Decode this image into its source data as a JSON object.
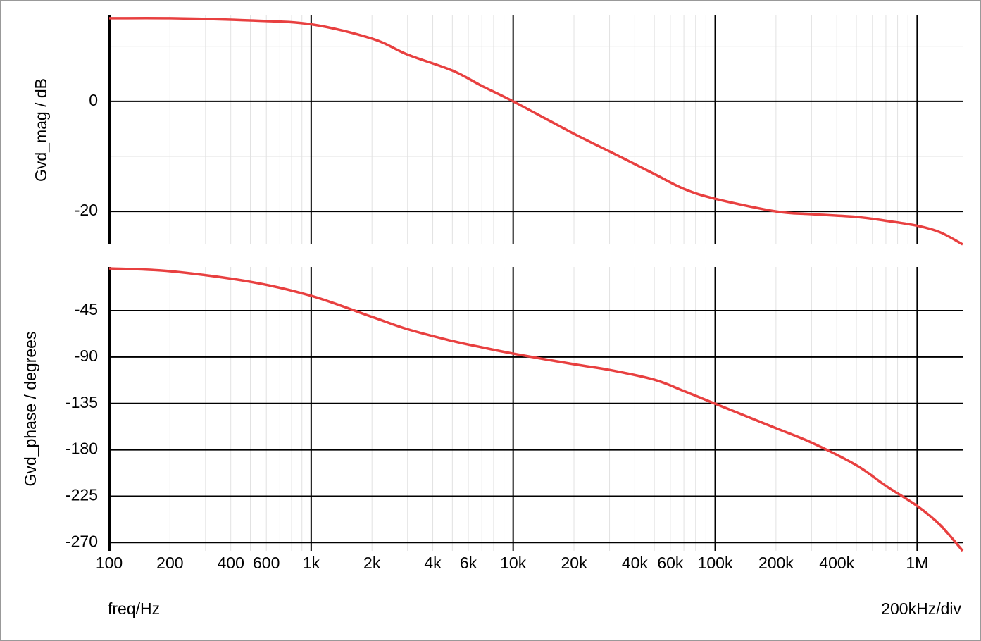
{
  "chart_data": [
    {
      "type": "line",
      "ylabel": "Gvd_mag / dB",
      "xscale": "log",
      "xlim": [
        100,
        1680000
      ],
      "ylim": [
        -26,
        15.6
      ],
      "yticks": [
        -20,
        0
      ],
      "y_minor_ticks": [
        -10,
        10
      ],
      "grid": true,
      "x": [
        100,
        200,
        500,
        1000,
        2000,
        3000,
        5000,
        7000,
        10000,
        20000,
        30000,
        50000,
        70000,
        100000,
        200000,
        300000,
        500000,
        700000,
        1000000,
        1300000,
        1680000
      ],
      "series": [
        {
          "color": "#e84040",
          "values": [
            15.1,
            15.1,
            14.7,
            14.0,
            11.4,
            8.5,
            5.6,
            2.8,
            0,
            -5.9,
            -9.1,
            -13.2,
            -15.9,
            -17.7,
            -20,
            -20.5,
            -21.0,
            -21.7,
            -22.6,
            -23.8,
            -26.0
          ]
        }
      ]
    },
    {
      "type": "line",
      "ylabel": "Gvd_phase / degrees",
      "xlabel": "freq/Hz",
      "annotation": "200kHz/div",
      "xscale": "log",
      "xlim": [
        100,
        1680000
      ],
      "ylim": [
        -278,
        -2.6
      ],
      "yticks": [
        -270,
        -225,
        -180,
        -135,
        -90,
        -45
      ],
      "grid": true,
      "xticks": [
        100,
        200,
        400,
        600,
        {
          "value": 1000,
          "label": "1k"
        },
        {
          "value": 2000,
          "label": "2k"
        },
        {
          "value": 4000,
          "label": "4k"
        },
        {
          "value": 6000,
          "label": "6k"
        },
        {
          "value": 10000,
          "label": "10k"
        },
        {
          "value": 20000,
          "label": "20k"
        },
        {
          "value": 40000,
          "label": "40k"
        },
        {
          "value": 60000,
          "label": "60k"
        },
        {
          "value": 100000,
          "label": "100k"
        },
        {
          "value": 200000,
          "label": "200k"
        },
        {
          "value": 400000,
          "label": "400k"
        },
        {
          "value": 1000000,
          "label": "1M"
        }
      ],
      "x": [
        100,
        200,
        500,
        1000,
        2000,
        3000,
        5000,
        7000,
        10000,
        20000,
        30000,
        50000,
        70000,
        100000,
        200000,
        300000,
        500000,
        700000,
        1000000,
        1300000,
        1680000
      ],
      "series": [
        {
          "color": "#e84040",
          "values": [
            -4,
            -6.7,
            -17,
            -30.6,
            -51,
            -63,
            -74.4,
            -80.6,
            -86.7,
            -97,
            -102.5,
            -112,
            -123,
            -135.3,
            -159,
            -173,
            -195,
            -215,
            -234.5,
            -253,
            -278
          ]
        }
      ]
    }
  ]
}
